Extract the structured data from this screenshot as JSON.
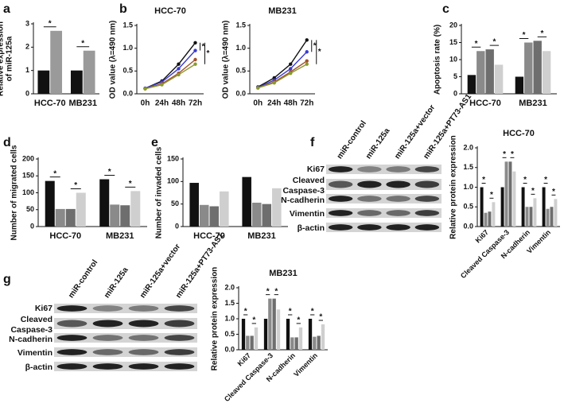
{
  "chart_data": [
    {
      "panel": "a",
      "type": "bar",
      "ylabel": [
        "Relative expression",
        "of miR-125a"
      ],
      "categories": [
        "HCC-70",
        "MB231"
      ],
      "series": [
        {
          "color": "#111111",
          "values": [
            1,
            1
          ]
        },
        {
          "color": "#9a9a9a",
          "values": [
            2.7,
            1.85
          ]
        }
      ],
      "ylim": [
        0,
        3
      ],
      "yticks": [
        0,
        1,
        2,
        3
      ],
      "significance_mark": "*"
    },
    {
      "panel": "b",
      "type": "line",
      "title": "HCC-70",
      "ylabel": [
        "OD value (λ=490 nm)"
      ],
      "categories": [
        "0h",
        "24h",
        "48h",
        "72h"
      ],
      "series": [
        {
          "color": "#111111",
          "values": [
            0.12,
            0.28,
            0.65,
            1.12
          ]
        },
        {
          "color": "#3a3ad0",
          "values": [
            0.12,
            0.26,
            0.55,
            0.95
          ]
        },
        {
          "color": "#a0522d",
          "values": [
            0.11,
            0.22,
            0.45,
            0.75
          ]
        },
        {
          "color": "#8a9a2a",
          "values": [
            0.11,
            0.2,
            0.42,
            0.65
          ]
        }
      ],
      "ylim": [
        0,
        1.5
      ],
      "yticks": [
        {
          "value": 0,
          "label": "0.0"
        },
        {
          "value": 0.5,
          "label": "0.5"
        },
        {
          "value": 1,
          "label": "1.0"
        },
        {
          "value": 1.5,
          "label": "1.5"
        }
      ],
      "significance_mark": "*"
    },
    {
      "type": "line",
      "title": "MB231",
      "ylabel": [
        "OD value (λ=490 nm)"
      ],
      "categories": [
        "0h",
        "24h",
        "48h",
        "72h"
      ],
      "series": [
        {
          "color": "#111111",
          "values": [
            0.15,
            0.35,
            0.65,
            1.18
          ]
        },
        {
          "color": "#3a3ad0",
          "values": [
            0.14,
            0.3,
            0.55,
            0.92
          ]
        },
        {
          "color": "#a0522d",
          "values": [
            0.13,
            0.26,
            0.48,
            0.72
          ]
        },
        {
          "color": "#8a9a2a",
          "values": [
            0.13,
            0.24,
            0.45,
            0.65
          ]
        }
      ],
      "ylim": [
        0,
        1.5
      ],
      "yticks": [
        {
          "value": 0,
          "label": "0.0"
        },
        {
          "value": 0.5,
          "label": "0.5"
        },
        {
          "value": 1,
          "label": "1.0"
        },
        {
          "value": 1.5,
          "label": "1.5"
        }
      ],
      "significance_mark": "*"
    },
    {
      "panel": "c",
      "type": "bar",
      "ylabel": [
        "Apoptosis rate (%)"
      ],
      "categories": [
        "HCC-70",
        "MB231"
      ],
      "series": [
        {
          "color": "#111111",
          "values": [
            5.5,
            5
          ]
        },
        {
          "color": "#8a8a8a",
          "values": [
            12.5,
            15
          ]
        },
        {
          "color": "#6e6e6e",
          "values": [
            13,
            15.5
          ]
        },
        {
          "color": "#cfcfcf",
          "values": [
            8.5,
            12.5
          ]
        }
      ],
      "ylim": [
        0,
        20
      ],
      "yticks": [
        0,
        5,
        10,
        15,
        20
      ],
      "significance_mark": "*"
    },
    {
      "panel": "d",
      "type": "bar",
      "ylabel": [
        "Number of migrated cells"
      ],
      "categories": [
        "HCC-70",
        "MB231"
      ],
      "series": [
        {
          "color": "#111111",
          "values": [
            135,
            140
          ]
        },
        {
          "color": "#8a8a8a",
          "values": [
            52,
            65
          ]
        },
        {
          "color": "#6e6e6e",
          "values": [
            52,
            63
          ]
        },
        {
          "color": "#cfcfcf",
          "values": [
            100,
            105
          ]
        }
      ],
      "ylim": [
        0,
        200
      ],
      "yticks": [
        0,
        50,
        100,
        150,
        200
      ],
      "significance_mark": "*"
    },
    {
      "panel": "e",
      "type": "bar",
      "ylabel": [
        "Number of invaded cells"
      ],
      "categories": [
        "HCC-70",
        "MB231"
      ],
      "series": [
        {
          "color": "#111111",
          "values": [
            97,
            110
          ]
        },
        {
          "color": "#8a8a8a",
          "values": [
            48,
            53
          ]
        },
        {
          "color": "#6e6e6e",
          "values": [
            45,
            50
          ]
        },
        {
          "color": "#cfcfcf",
          "values": [
            78,
            85
          ]
        }
      ],
      "ylim": [
        0,
        150
      ],
      "yticks": [
        0,
        50,
        100,
        150
      ]
    },
    {
      "panel": "f",
      "type": "bar",
      "title": "HCC-70",
      "ylabel": [
        "Relative protein expression"
      ],
      "categories": [
        "Ki67",
        "Cleaved Caspase-3",
        "N-cadherin",
        "Vimentin"
      ],
      "series": [
        {
          "color": "#111111",
          "values": [
            1,
            1,
            1,
            1
          ]
        },
        {
          "color": "#8a8a8a",
          "values": [
            0.35,
            1.65,
            0.5,
            0.45
          ]
        },
        {
          "color": "#6e6e6e",
          "values": [
            0.38,
            1.65,
            0.5,
            0.5
          ]
        },
        {
          "color": "#cfcfcf",
          "values": [
            0.62,
            1.4,
            0.72,
            0.7
          ]
        }
      ],
      "ylim": [
        0,
        2
      ],
      "yticks": [
        {
          "value": 0,
          "label": "0.0"
        },
        {
          "value": 0.5,
          "label": "0.5"
        },
        {
          "value": 1,
          "label": "1.0"
        },
        {
          "value": 1.5,
          "label": "1.5"
        },
        {
          "value": 2,
          "label": "2.0"
        }
      ],
      "significance_mark": "*"
    },
    {
      "panel": "g",
      "type": "bar",
      "title": "MB231",
      "ylabel": [
        "Relative protein expression"
      ],
      "categories": [
        "Ki67",
        "Cleaved Caspase-3",
        "N-cadherin",
        "Vimentin"
      ],
      "series": [
        {
          "color": "#111111",
          "values": [
            1,
            1,
            1,
            1
          ]
        },
        {
          "color": "#8a8a8a",
          "values": [
            0.45,
            1.65,
            0.4,
            0.42
          ]
        },
        {
          "color": "#6e6e6e",
          "values": [
            0.45,
            1.65,
            0.4,
            0.45
          ]
        },
        {
          "color": "#cfcfcf",
          "values": [
            0.72,
            1.3,
            0.72,
            0.82
          ]
        }
      ],
      "ylim": [
        0,
        2
      ],
      "yticks": [
        {
          "value": 0,
          "label": "0.0"
        },
        {
          "value": 0.5,
          "label": "0.5"
        },
        {
          "value": 1,
          "label": "1.0"
        },
        {
          "value": 1.5,
          "label": "1.5"
        },
        {
          "value": 2,
          "label": "2.0"
        }
      ],
      "significance_mark": "*"
    }
  ],
  "blots": [
    {
      "columns": [
        "miR-control",
        "miR-125a",
        "miR-125a+vector",
        "miR-125a+PT73-AS1"
      ],
      "rows": [
        "Ki67",
        "Cleaved",
        "Caspase-3",
        "N-cadherin",
        "Vimentin",
        "β-actin"
      ]
    },
    {
      "columns": [
        "miR-control",
        "miR-125a",
        "miR-125a+vector",
        "miR-125a+PT73-AS1"
      ],
      "rows": [
        "Ki67",
        "Cleaved",
        "Caspase-3",
        "N-cadherin",
        "Vimentin",
        "β-actin"
      ]
    }
  ]
}
